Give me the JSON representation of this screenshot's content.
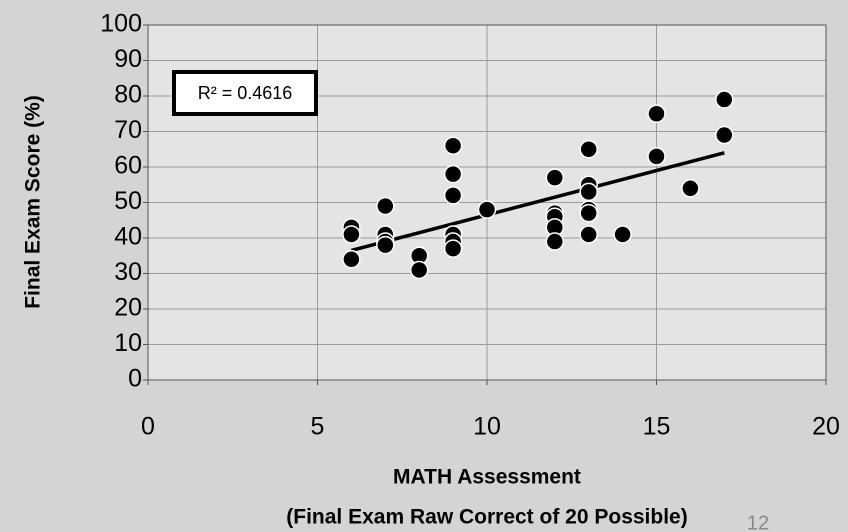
{
  "chart_data": {
    "type": "scatter",
    "y_axis_title": "Final Exam Score (%)",
    "x_axis_title": [
      "MATH Assessment",
      "(Final Exam Raw Correct of 20 Possible)"
    ],
    "annotation": "R² = 0.4616",
    "slide_number": "12",
    "color": "#000000",
    "x": [
      6,
      6,
      6,
      7,
      7,
      7,
      7,
      8,
      8,
      9,
      9,
      9,
      9,
      9,
      9,
      10,
      12,
      12,
      12,
      12,
      12,
      13,
      13,
      13,
      13,
      13,
      13,
      14,
      15,
      15,
      16,
      17,
      17
    ],
    "values": [
      43,
      41,
      34,
      49,
      41,
      39,
      38,
      35,
      31,
      66,
      58,
      52,
      41,
      39,
      37,
      48,
      57,
      47,
      46,
      43,
      39,
      65,
      55,
      53,
      48,
      47,
      41,
      41,
      75,
      63,
      54,
      79,
      69
    ],
    "trendline": {
      "x": [
        6,
        17
      ],
      "y": [
        36.5,
        64
      ]
    },
    "xlim": [
      0,
      20
    ],
    "xticks": [
      0,
      5,
      10,
      15,
      20
    ],
    "ylim": [
      0,
      100
    ],
    "yticks": [
      0,
      10,
      20,
      30,
      40,
      50,
      60,
      70,
      80,
      90,
      100
    ],
    "grid": true
  }
}
